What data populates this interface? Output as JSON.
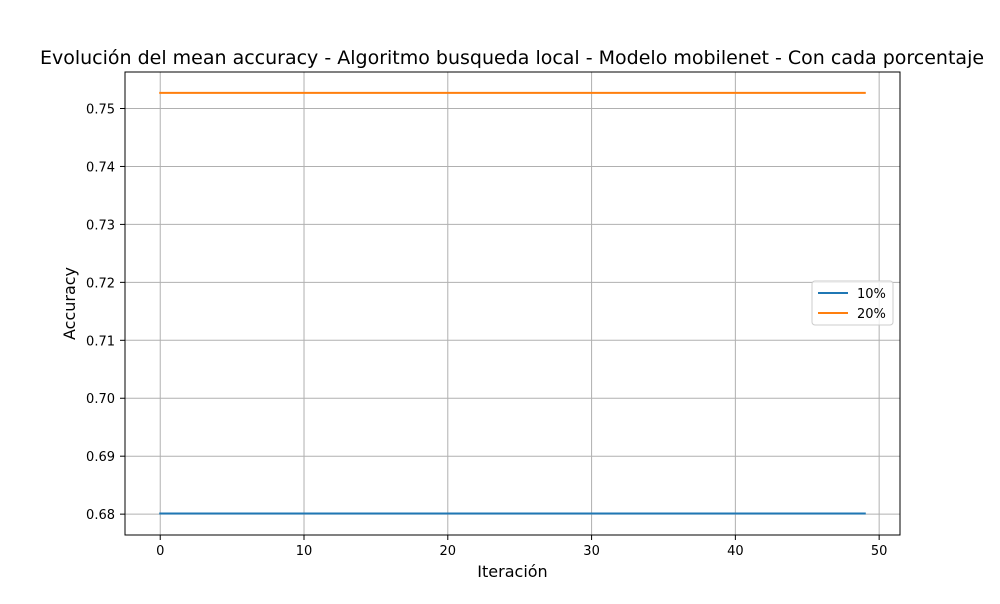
{
  "chart_data": {
    "type": "line",
    "title": "Evolución del mean accuracy - Algoritmo busqueda local - Modelo mobilenet - Con cada porcentaje",
    "xlabel": "Iteración",
    "ylabel": "Accuracy",
    "xlim": [
      -2.45,
      51.45
    ],
    "ylim": [
      0.6764,
      0.7563
    ],
    "xticks": [
      0,
      10,
      20,
      30,
      40,
      50
    ],
    "xtick_labels": [
      "0",
      "10",
      "20",
      "30",
      "40",
      "50"
    ],
    "yticks": [
      0.68,
      0.69,
      0.7,
      0.71,
      0.72,
      0.73,
      0.74,
      0.75
    ],
    "ytick_labels": [
      "0.68",
      "0.69",
      "0.70",
      "0.71",
      "0.72",
      "0.73",
      "0.74",
      "0.75"
    ],
    "grid": true,
    "legend_position": "center-right",
    "series": [
      {
        "name": "10%",
        "color": "#1f77b4",
        "x_start": 0,
        "x_end": 49,
        "y": 0.6801
      },
      {
        "name": "20%",
        "color": "#ff7f0e",
        "x_start": 0,
        "x_end": 49,
        "y": 0.7527
      }
    ]
  }
}
